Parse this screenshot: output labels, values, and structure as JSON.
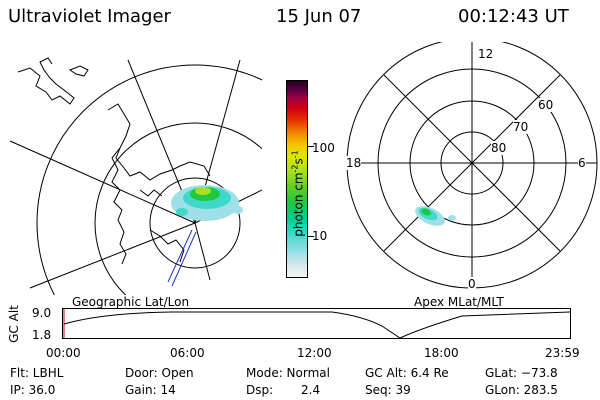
{
  "header": {
    "instrument": "Ultraviolet Imager",
    "date": "15 Jun 07",
    "time": "00:12:43 UT"
  },
  "geo_panel": {
    "label": "Geographic Lat/Lon"
  },
  "apex_panel": {
    "label": "Apex MLat/MLT",
    "mlt_labels": {
      "top": "12",
      "right": "6",
      "bottom": "0",
      "left": "18"
    },
    "lat_labels": [
      "60",
      "70",
      "80"
    ]
  },
  "colorbar": {
    "unit_label": "photon cm",
    "unit_exp1": "-2",
    "unit_mid": "s",
    "unit_exp2": "-1",
    "ticks": [
      "100",
      "10"
    ],
    "colors": [
      "#f4f4f4",
      "#d8e8ec",
      "#9fe0e8",
      "#40d8c8",
      "#00d090",
      "#20c840",
      "#60d020",
      "#a8e020",
      "#e0e800",
      "#f8c000",
      "#f08000",
      "#e83000",
      "#d00010",
      "#a00040",
      "#600040",
      "#200020"
    ]
  },
  "timeline": {
    "ylabel": "GC Alt",
    "y_ticks": [
      "9.0",
      "1.8"
    ],
    "x_ticks": [
      "00:00",
      "06:00",
      "12:00",
      "18:00",
      "23:59"
    ]
  },
  "info": {
    "filter": "Flt: LBHL",
    "ip": "IP: 36.0",
    "door": "Door: Open",
    "gain": "Gain: 14",
    "mode": "Mode: Normal",
    "dsp_label": "Dsp:",
    "dsp_value": "2.4",
    "gc_alt": "GC Alt: 6.4 Re",
    "seq": "Seq: 39",
    "glat": "GLat: −73.8",
    "glon": "GLon: 283.5"
  }
}
